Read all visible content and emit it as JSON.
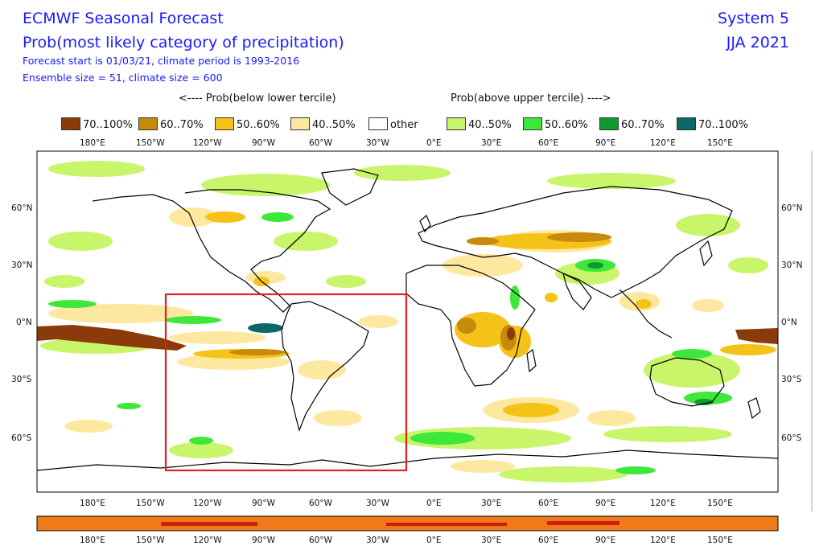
{
  "header": {
    "title": "ECMWF Seasonal Forecast",
    "subtitle": "Prob(most likely category of precipitation)",
    "info1": "Forecast start is 01/03/21, climate period is 1993-2016",
    "info2": "Ensemble size = 51, climate size = 600",
    "system": "System 5",
    "season": "JJA 2021"
  },
  "legend": {
    "below_label": "<---- Prob(below lower tercile)",
    "above_label": "Prob(above upper tercile) ---->",
    "items": [
      {
        "label": "70..100%",
        "color": "#8b3a0a"
      },
      {
        "label": "60..70%",
        "color": "#c88a0a"
      },
      {
        "label": "50..60%",
        "color": "#f5c218"
      },
      {
        "label": "40..50%",
        "color": "#fde8a0"
      },
      {
        "label": "other",
        "color": "#ffffff"
      },
      {
        "label": "40..50%",
        "color": "#c8f56a"
      },
      {
        "label": "50..60%",
        "color": "#3ee83a"
      },
      {
        "label": "60..70%",
        "color": "#0f9a30"
      },
      {
        "label": "70..100%",
        "color": "#0c6868"
      }
    ]
  },
  "axes": {
    "lon_labels": [
      "180°E",
      "150°W",
      "120°W",
      "90°W",
      "60°W",
      "30°W",
      "0°E",
      "30°E",
      "60°E",
      "90°E",
      "120°E",
      "150°E"
    ],
    "lat_labels": [
      "60°N",
      "30°N",
      "0°N",
      "30°S",
      "60°S"
    ]
  },
  "region_box": {
    "color": "#dd2222"
  },
  "colors": {
    "coast": "#000000",
    "bottom_band": "#f07a18",
    "bottom_band_dark": "#cc1f10"
  }
}
